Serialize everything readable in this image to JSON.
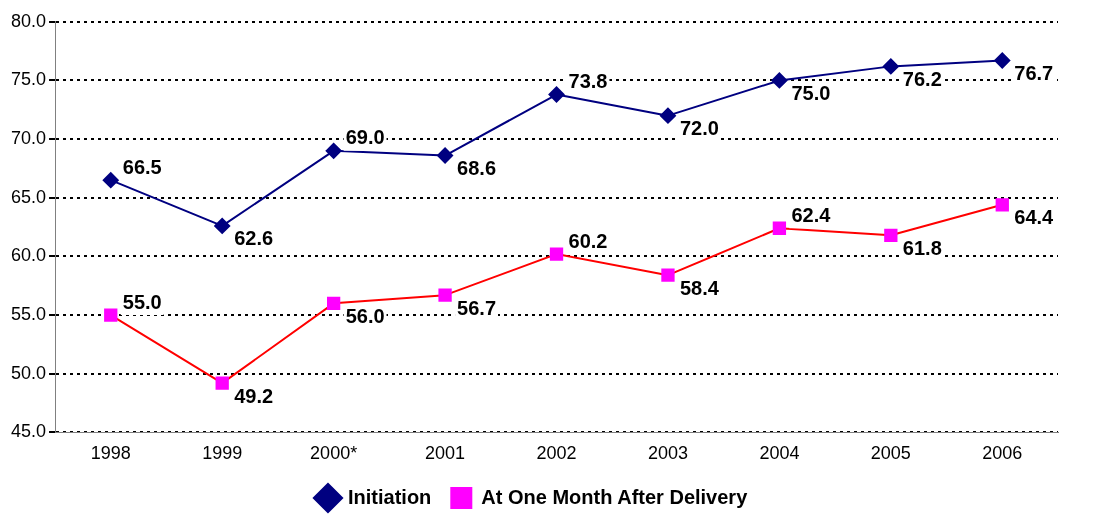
{
  "chart_data": {
    "type": "line",
    "categories": [
      "1998",
      "1999",
      "2000*",
      "2001",
      "2002",
      "2003",
      "2004",
      "2005",
      "2006"
    ],
    "series": [
      {
        "name": "Initiation",
        "color": "#000080",
        "marker": "diamond",
        "values": [
          66.5,
          62.6,
          69.0,
          68.6,
          73.8,
          72.0,
          75.0,
          76.2,
          76.7
        ],
        "value_labels": [
          "66.5",
          "62.6",
          "69.0",
          "68.6",
          "73.8",
          "72.0",
          "75.0",
          "76.2",
          "76.7"
        ]
      },
      {
        "name": "At One Month After Delivery",
        "color": "#ff0000",
        "colors": [
          "#ff00ff",
          "#ff00ff",
          "#ff00ff",
          "#ff00ff",
          "#ff00ff",
          "#ff00ff",
          "#ff00ff",
          "#ff00ff",
          "#ff00ff"
        ],
        "marker": "square",
        "values": [
          55.0,
          49.2,
          56.0,
          56.7,
          60.2,
          58.4,
          62.4,
          61.8,
          64.4
        ],
        "value_labels": [
          "55.0",
          "49.2",
          "56.0",
          "56.7",
          "60.2",
          "58.4",
          "62.4",
          "61.8",
          "64.4"
        ]
      }
    ],
    "ylim": [
      45,
      80
    ],
    "yticks": [
      {
        "value": 45,
        "label": "45.0"
      },
      {
        "value": 50,
        "label": "50.0"
      },
      {
        "value": 55,
        "label": "55.0"
      },
      {
        "value": 60,
        "label": "60.0"
      },
      {
        "value": 65,
        "label": "65.0"
      },
      {
        "value": 70,
        "label": "70.0"
      },
      {
        "value": 75,
        "label": "75.0"
      },
      {
        "value": 80,
        "label": "80.0"
      }
    ],
    "grid": "y",
    "line_style": "solid",
    "legend": "bottom"
  }
}
